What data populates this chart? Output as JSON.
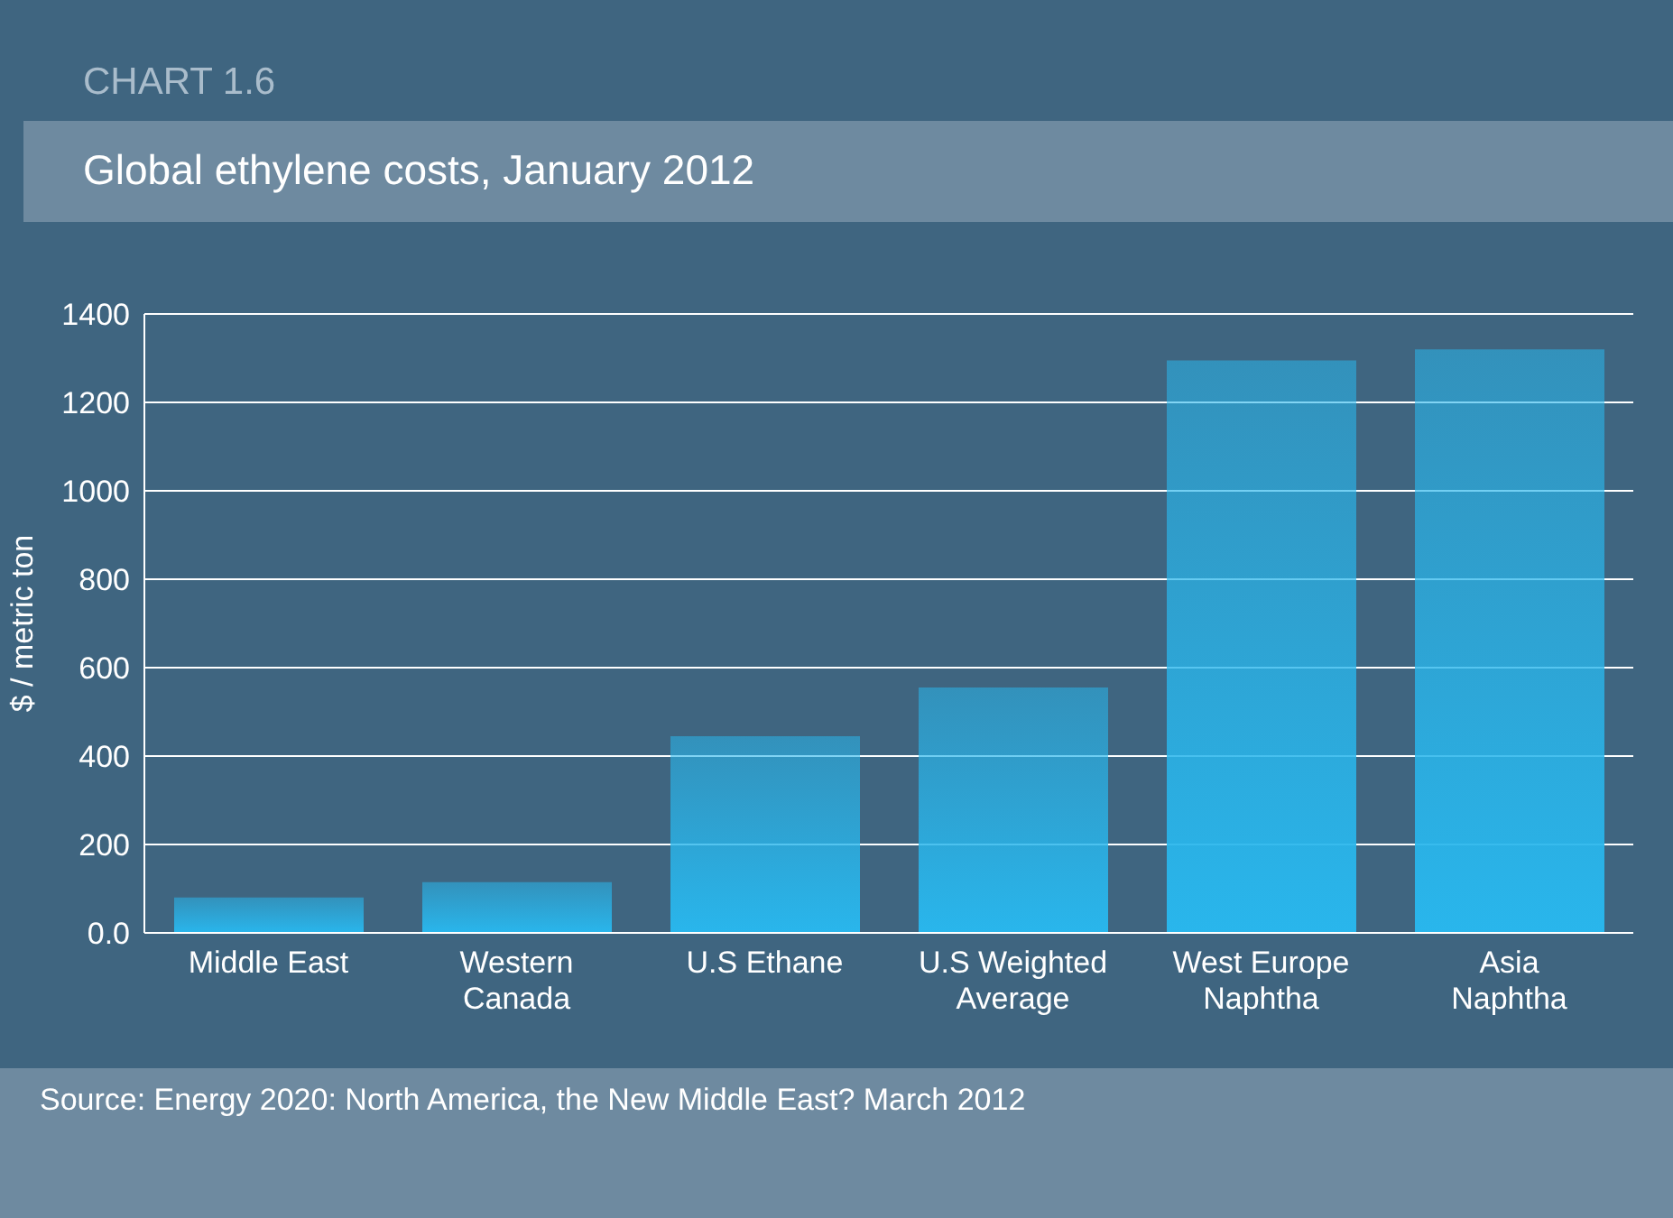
{
  "chart_data": {
    "type": "bar",
    "subtitle": "CHART 1.6",
    "title": "Global ethylene costs, January 2012",
    "ylabel": "$ / metric ton",
    "categories": [
      "Middle East",
      "Western Canada",
      "U.S Ethane",
      "U.S Weighted Average",
      "West Europe Naphtha",
      "Asia Naphtha"
    ],
    "values": [
      80,
      115,
      445,
      555,
      1295,
      1320
    ],
    "color": "#29b6ec",
    "ylim": [
      0,
      1400
    ],
    "yticks": [
      {
        "value": 0,
        "label": "0.0"
      },
      200,
      400,
      600,
      800,
      1000,
      1200,
      1400
    ],
    "grid": "y",
    "annotations": [
      "Source: Energy 2020: North America, the New Middle East? March 2012"
    ]
  }
}
